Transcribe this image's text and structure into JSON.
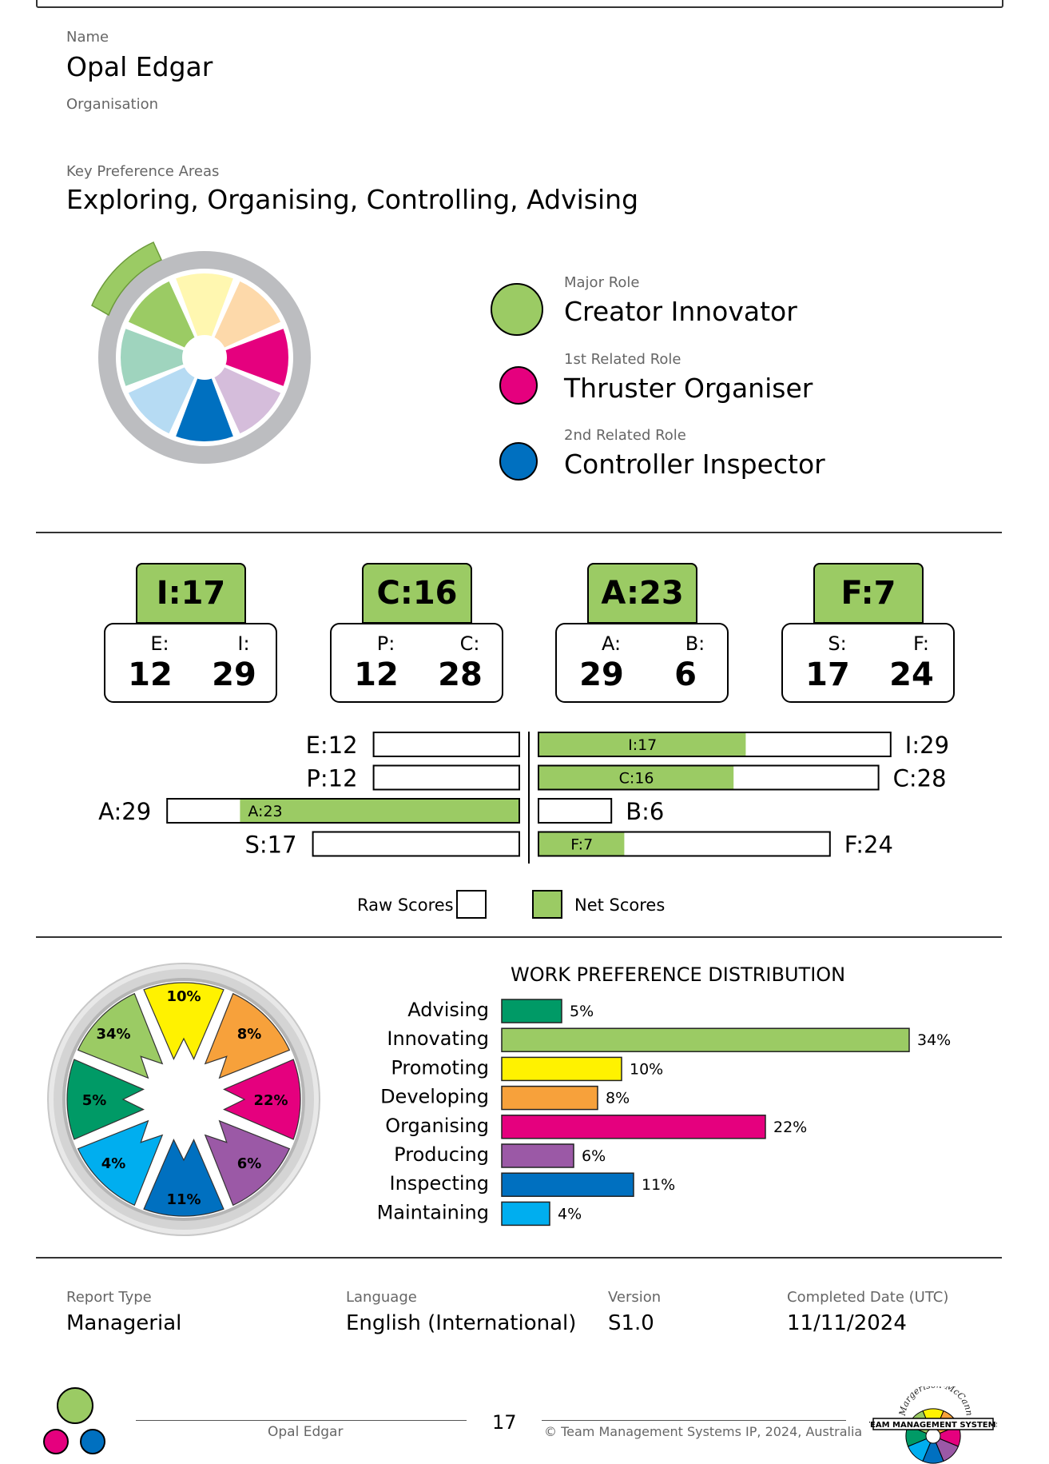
{
  "person": {
    "name_label": "Name",
    "name": "Opal Edgar",
    "org_label": "Organisation"
  },
  "key_pref": {
    "label": "Key Preference Areas",
    "value": "Exploring, Organising, Controlling, Advising"
  },
  "roles": [
    {
      "label": "Major Role",
      "value": "Creator Innovator",
      "color": "#9bcb64"
    },
    {
      "label": "1st Related Role",
      "value": "Thruster Organiser",
      "color": "#e5007e"
    },
    {
      "label": "2nd Related Role",
      "value": "Controller Inspector",
      "color": "#0070c0"
    }
  ],
  "scales": [
    {
      "net": "I:17",
      "left_letter": "E:",
      "left_val": "12",
      "right_letter": "I:",
      "right_val": "29"
    },
    {
      "net": "C:16",
      "left_letter": "P:",
      "left_val": "12",
      "right_letter": "C:",
      "right_val": "28"
    },
    {
      "net": "A:23",
      "left_letter": "A:",
      "left_val": "29",
      "right_letter": "B:",
      "right_val": "6"
    },
    {
      "net": "F:7",
      "left_letter": "S:",
      "left_val": "17",
      "right_letter": "F:",
      "right_val": "24"
    }
  ],
  "bar_chart": {
    "max": 29,
    "rows": [
      {
        "left_label": "E:12",
        "left_raw": 12,
        "right_label": "I:29",
        "right_raw": 29,
        "net_side": "right",
        "net": 17,
        "net_label": "I:17"
      },
      {
        "left_label": "P:12",
        "left_raw": 12,
        "right_label": "C:28",
        "right_raw": 28,
        "net_side": "right",
        "net": 16,
        "net_label": "C:16"
      },
      {
        "left_label": "A:29",
        "left_raw": 29,
        "right_label": "B:6",
        "right_raw": 6,
        "net_side": "left",
        "net": 23,
        "net_label": "A:23"
      },
      {
        "left_label": "S:17",
        "left_raw": 17,
        "right_label": "F:24",
        "right_raw": 24,
        "net_side": "right",
        "net": 7,
        "net_label": "F:7"
      }
    ],
    "legend_raw": "Raw Scores",
    "legend_net": "Net Scores",
    "net_color": "#9bcb64"
  },
  "chart_data": {
    "type": "bar",
    "title": "WORK PREFERENCE DISTRIBUTION",
    "categories": [
      "Advising",
      "Innovating",
      "Promoting",
      "Developing",
      "Organising",
      "Producing",
      "Inspecting",
      "Maintaining"
    ],
    "values": [
      5,
      34,
      10,
      8,
      22,
      6,
      11,
      4
    ],
    "labels": [
      "5%",
      "34%",
      "10%",
      "8%",
      "22%",
      "6%",
      "11%",
      "4%"
    ],
    "colors": [
      "#009a66",
      "#9bcb64",
      "#fff200",
      "#f7a13b",
      "#e5007e",
      "#9b59a6",
      "#0070c0",
      "#00aeef"
    ],
    "orientation": "horizontal",
    "xlim": [
      0,
      34
    ]
  },
  "wheel_pcts": {
    "promoting": "10%",
    "developing": "8%",
    "organising": "22%",
    "producing": "6%",
    "inspecting": "11%",
    "maintaining": "4%",
    "advising": "5%",
    "innovating": "34%"
  },
  "meta": [
    {
      "label": "Report Type",
      "value": "Managerial"
    },
    {
      "label": "Language",
      "value": "English (International)"
    },
    {
      "label": "Version",
      "value": "S1.0"
    },
    {
      "label": "Completed Date (UTC)",
      "value": "11/11/2024"
    }
  ],
  "footer": {
    "name": "Opal Edgar",
    "page": "17",
    "copyright": "© Team Management Systems IP, 2024, Australia",
    "logo_text": "TEAM MANAGEMENT SYSTEMS",
    "logo_arc_text": "Margerison-McCann"
  }
}
